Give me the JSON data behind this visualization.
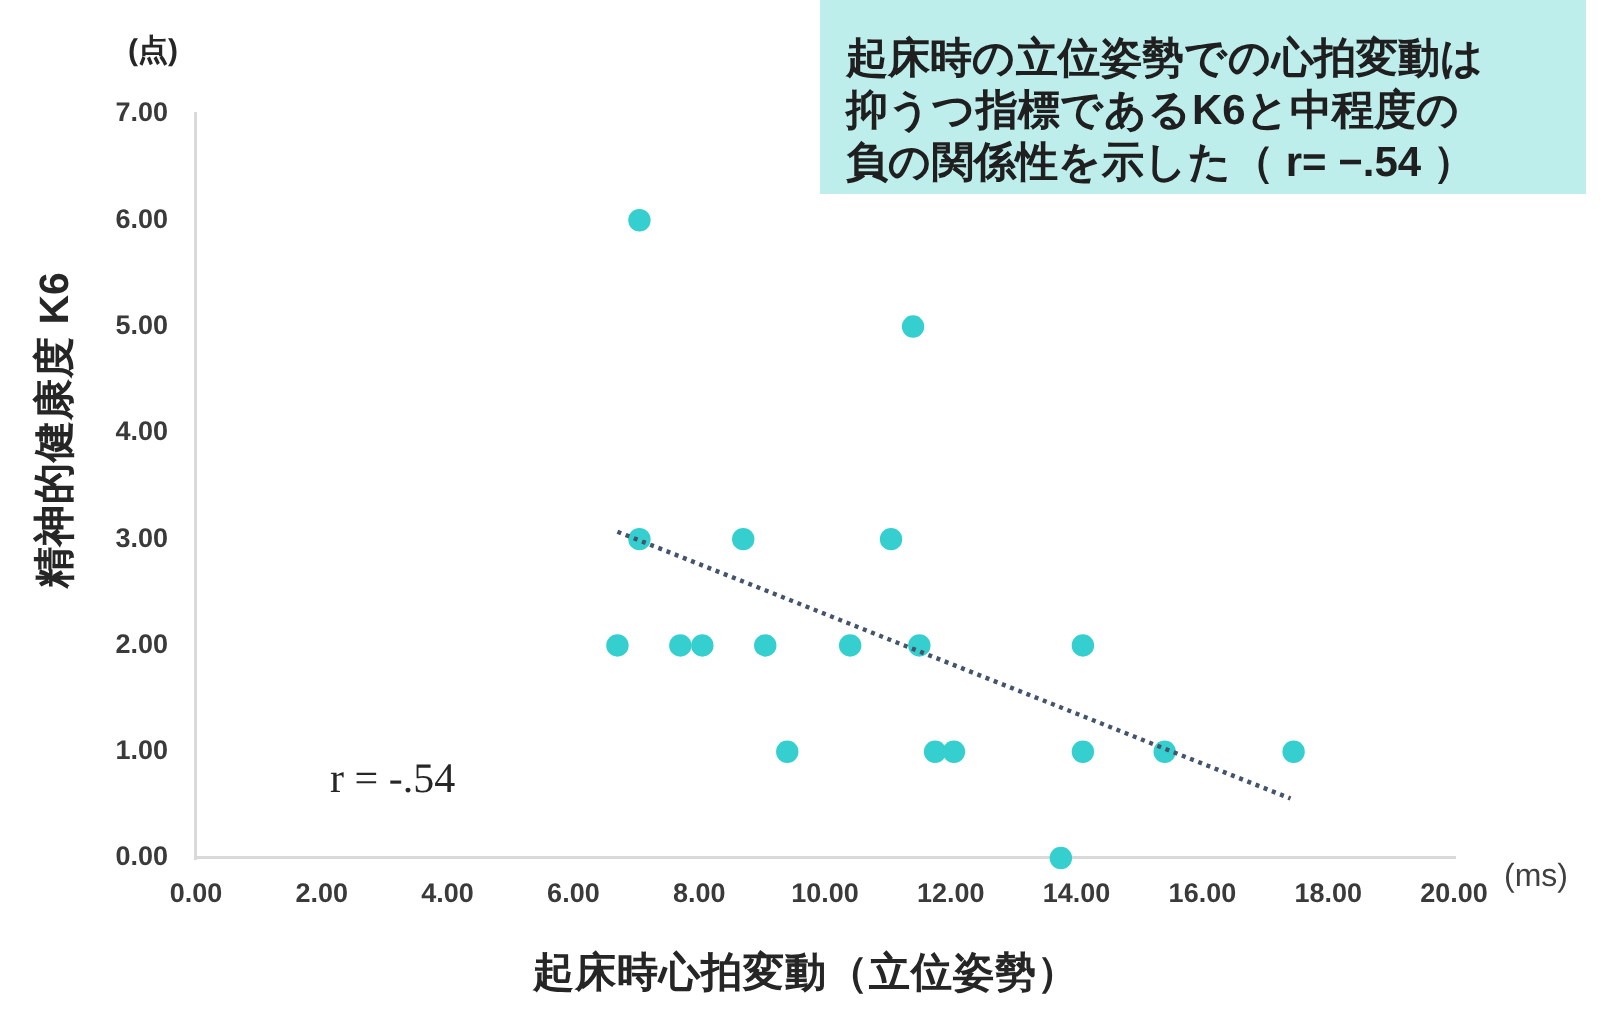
{
  "chart_data": {
    "type": "scatter",
    "title": "起床時の立位姿勢での心拍変動は抑うつ指標であるK6と中程度の負の関係性を示した（ r= −.54 ）",
    "xlabel": "起床時心拍変動（立位姿勢）",
    "ylabel": "精神的健康度 K6",
    "annotations": [
      "(点)",
      "(ms)",
      "r = -.54"
    ],
    "series": [
      {
        "type": "scatter",
        "color": "#36cfcf",
        "x": [
          6.7,
          7.05,
          7.05,
          7.7,
          8.05,
          8.7,
          9.05,
          9.4,
          10.4,
          11.05,
          11.4,
          11.5,
          11.75,
          12.05,
          13.75,
          14.1,
          14.1,
          15.4,
          17.45
        ],
        "values": [
          2,
          6,
          3,
          2,
          2,
          3,
          2,
          1,
          2,
          3,
          5,
          2,
          1,
          1,
          0,
          2,
          1,
          1,
          1
        ]
      },
      {
        "type": "line",
        "color": "#44546a",
        "x": [
          6.7,
          17.4
        ],
        "values": [
          3.07,
          0.56
        ],
        "line_style": "dotted",
        "marker": "none"
      }
    ],
    "xlim": [
      0,
      20
    ],
    "xticks": [
      {
        "value": 0,
        "label": "0.00"
      },
      {
        "value": 2,
        "label": "2.00"
      },
      {
        "value": 4,
        "label": "4.00"
      },
      {
        "value": 6,
        "label": "6.00"
      },
      {
        "value": 8,
        "label": "8.00"
      },
      {
        "value": 10,
        "label": "10.00"
      },
      {
        "value": 12,
        "label": "12.00"
      },
      {
        "value": 14,
        "label": "14.00"
      },
      {
        "value": 16,
        "label": "16.00"
      },
      {
        "value": 18,
        "label": "18.00"
      },
      {
        "value": 20,
        "label": "20.00"
      }
    ],
    "ylim": [
      0,
      7
    ],
    "yticks": [
      {
        "value": 0,
        "label": "0.00"
      },
      {
        "value": 1,
        "label": "1.00"
      },
      {
        "value": 2,
        "label": "2.00"
      },
      {
        "value": 3,
        "label": "3.00"
      },
      {
        "value": 4,
        "label": "4.00"
      },
      {
        "value": 5,
        "label": "5.00"
      },
      {
        "value": 6,
        "label": "6.00"
      },
      {
        "value": 7,
        "label": "7.00"
      }
    ],
    "grid": false,
    "legend": false,
    "marker": "circle"
  }
}
